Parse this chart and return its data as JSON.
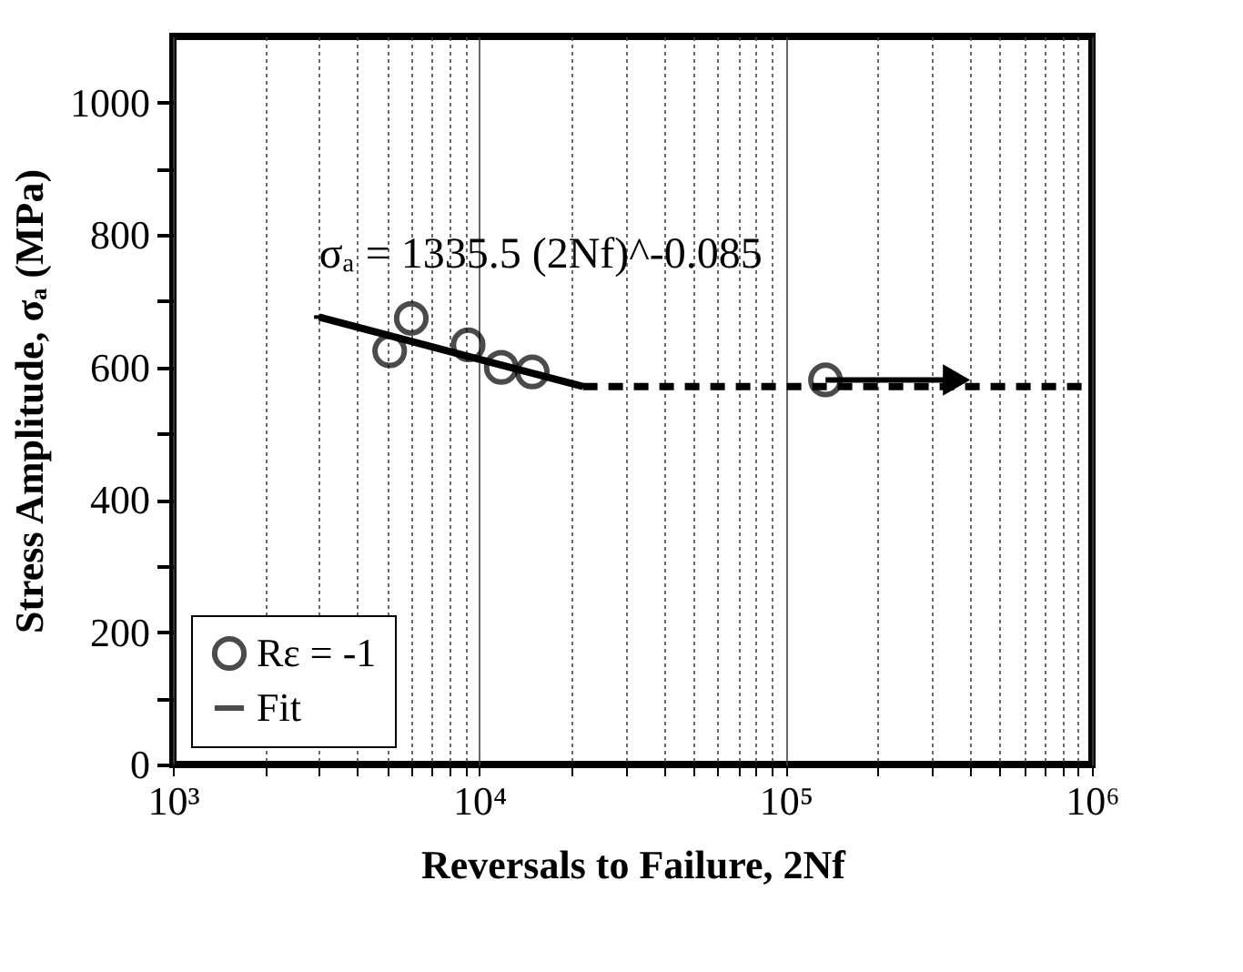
{
  "chart_data": {
    "type": "scatter",
    "xlabel": "Reversals to Failure, 2Nf",
    "ylabel": "Stress Amplitude, σₐ (MPa)",
    "log": "x",
    "xlim": [
      1000,
      1000000
    ],
    "xticks": [
      {
        "value": 1000,
        "label": "10³"
      },
      {
        "value": 2000,
        "label": null
      },
      {
        "value": 3000,
        "label": null
      },
      {
        "value": 4000,
        "label": null
      },
      {
        "value": 5000,
        "label": null
      },
      {
        "value": 6000,
        "label": null
      },
      {
        "value": 7000,
        "label": null
      },
      {
        "value": 8000,
        "label": null
      },
      {
        "value": 9000,
        "label": null
      },
      {
        "value": 10000,
        "label": "10⁴"
      },
      {
        "value": 20000,
        "label": null
      },
      {
        "value": 30000,
        "label": null
      },
      {
        "value": 40000,
        "label": null
      },
      {
        "value": 50000,
        "label": null
      },
      {
        "value": 60000,
        "label": null
      },
      {
        "value": 70000,
        "label": null
      },
      {
        "value": 80000,
        "label": null
      },
      {
        "value": 90000,
        "label": null
      },
      {
        "value": 100000,
        "label": "10⁵"
      },
      {
        "value": 200000,
        "label": null
      },
      {
        "value": 300000,
        "label": null
      },
      {
        "value": 400000,
        "label": null
      },
      {
        "value": 500000,
        "label": null
      },
      {
        "value": 600000,
        "label": null
      },
      {
        "value": 700000,
        "label": null
      },
      {
        "value": 800000,
        "label": null
      },
      {
        "value": 900000,
        "label": null
      },
      {
        "value": 1000000,
        "label": "10⁶"
      }
    ],
    "ylim": [
      0,
      1100
    ],
    "yticks": [
      0,
      {
        "value": 100,
        "label": null
      },
      200,
      {
        "value": 300,
        "label": null
      },
      400,
      {
        "value": 500,
        "label": null
      },
      600,
      {
        "value": 700,
        "label": null
      },
      800,
      {
        "value": 900,
        "label": null
      },
      1000
    ],
    "grid": "x",
    "legend": "bottom left",
    "series": [
      {
        "name": "Rε = -1",
        "type": "scatter",
        "marker": "circle",
        "color": "#000000",
        "x": [
          5100,
          6000,
          9200,
          11800,
          14900,
          135000
        ],
        "values": [
          625,
          674,
          634,
          600,
          593,
          581
        ]
      },
      {
        "name": "Fit",
        "type": "line",
        "line_style": "solid",
        "color": "#000000",
        "x": [
          3000,
          21800
        ],
        "values": [
          676,
          571
        ]
      },
      {
        "type": "line",
        "line_style": "dashed",
        "color": "#000000",
        "x": [
          21800,
          1000000
        ],
        "values": [
          571,
          571
        ]
      }
    ],
    "annotations": [
      {
        "text": "σₐ = 1335.5 (2Nf)^-0.085",
        "x": 3000,
        "y": 676
      }
    ]
  }
}
